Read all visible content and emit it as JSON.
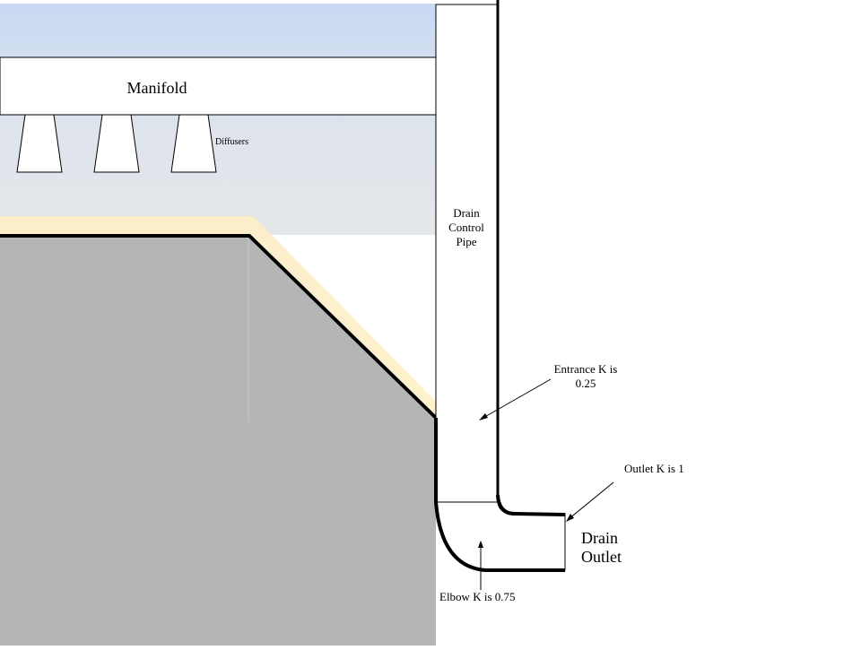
{
  "labels": {
    "manifold": "Manifold",
    "diffusers": "Diffusers",
    "drain_control_pipe": [
      "Drain",
      "Control",
      "Pipe"
    ],
    "entrance_k": [
      "Entrance K is",
      "0.25"
    ],
    "outlet_k": "Outlet K is 1",
    "drain_outlet": [
      "Drain",
      "Outlet"
    ],
    "elbow_k": "Elbow K is 0.75"
  },
  "colors": {
    "sky_top": "#c9d9f3",
    "sky_bottom": "#e4e7ea",
    "sand": "#fef2cc",
    "ground": "#b5b5b5",
    "outline": "#000000",
    "pipe_fill": "#ffffff"
  }
}
